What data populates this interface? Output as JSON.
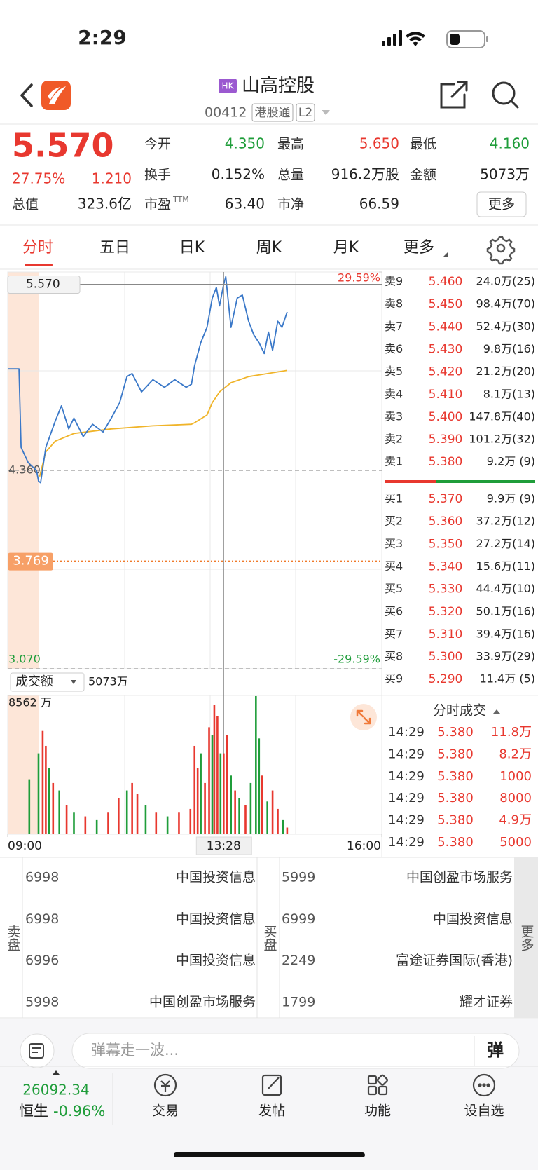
{
  "status_bar": {
    "time": "2:29"
  },
  "header": {
    "market_badge": "HK",
    "name": "山高控股",
    "code": "00412",
    "tags": [
      "港股通",
      "L2"
    ]
  },
  "quote": {
    "price": "5.570",
    "change_pct": "27.75%",
    "change": "1.210",
    "stats": [
      {
        "label": "今开",
        "value": "4.350"
      },
      {
        "label": "最高",
        "value": "5.650"
      },
      {
        "label": "最低",
        "value": "4.160"
      },
      {
        "label": "换手",
        "value": "0.152%"
      },
      {
        "label": "总量",
        "value": "916.2万股"
      },
      {
        "label": "金额",
        "value": "5073万"
      },
      {
        "label": "总值",
        "value": "323.6亿"
      },
      {
        "label": "市盈",
        "suffix": "TTM",
        "value": "63.40"
      },
      {
        "label": "市净",
        "value": "66.59"
      }
    ],
    "more_button": "更多"
  },
  "tabs": [
    "分时",
    "五日",
    "日K",
    "周K",
    "月K",
    "更多"
  ],
  "chart_data": [
    {
      "type": "line",
      "xlim": [
        "09:00",
        "16:00"
      ],
      "ylim": [
        3.07,
        5.65
      ],
      "yticks": [
        {
          "value": 4.36,
          "label": "4.360"
        },
        {
          "value": 3.07,
          "label": "3.070"
        }
      ],
      "y2lim": [
        -29.59,
        29.59
      ],
      "y2ticks": [
        {
          "value": 29.59,
          "label": "29.59%"
        },
        {
          "value": -29.59,
          "label": "-29.59%"
        }
      ],
      "crosshair": {
        "x": "13:28",
        "y": {
          "value": 5.57,
          "label": "5.570"
        }
      },
      "alert_line": {
        "value": 3.769,
        "label": "3.769"
      },
      "price": {
        "color": "#3a78c8",
        "x": [
          "09:00",
          "09:11",
          "09:13",
          "09:20",
          "09:28",
          "09:30",
          "09:32",
          "09:37",
          "09:46",
          "09:52",
          "09:59",
          "10:04",
          "10:13",
          "10:22",
          "10:32",
          "10:40",
          "10:48",
          "10:55",
          "11:00",
          "11:09",
          "11:20",
          "11:31",
          "11:41",
          "11:52",
          "11:57",
          "13:00",
          "13:06",
          "13:12",
          "13:17",
          "13:21",
          "13:24",
          "13:28",
          "13:30",
          "13:35",
          "13:41",
          "13:46",
          "13:52",
          "13:57",
          "14:02",
          "14:07",
          "14:11",
          "14:15",
          "14:20",
          "14:24",
          "14:29"
        ],
        "values": [
          5.02,
          5.02,
          4.51,
          4.41,
          4.36,
          4.29,
          4.28,
          4.51,
          4.68,
          4.78,
          4.63,
          4.7,
          4.58,
          4.66,
          4.61,
          4.7,
          4.8,
          4.97,
          4.99,
          4.87,
          4.95,
          4.9,
          4.95,
          4.9,
          4.92,
          5.04,
          5.19,
          5.29,
          5.48,
          5.55,
          5.43,
          5.57,
          5.62,
          5.29,
          5.48,
          5.5,
          5.33,
          5.24,
          5.19,
          5.12,
          5.26,
          5.14,
          5.33,
          5.29,
          5.39
        ]
      },
      "average": {
        "color": "#f0b429",
        "x": [
          "09:31",
          "09:37",
          "09:46",
          "10:04",
          "10:40",
          "11:20",
          "11:57",
          "13:00",
          "13:12",
          "13:17",
          "13:24",
          "13:35",
          "13:52",
          "14:29"
        ],
        "values": [
          4.32,
          4.48,
          4.55,
          4.6,
          4.63,
          4.65,
          4.66,
          4.67,
          4.72,
          4.8,
          4.87,
          4.93,
          4.97,
          5.01
        ]
      }
    },
    {
      "type": "bar",
      "selector": "成交额",
      "total": "5073万",
      "xlim": [
        "09:00",
        "16:00"
      ],
      "xticks": [
        "09:00",
        "16:00"
      ],
      "ylim": [
        0,
        8562
      ],
      "yticks": [
        {
          "value": 8562,
          "label": "8562 万"
        }
      ],
      "x": [
        "09:21",
        "09:30",
        "09:34",
        "09:37",
        "09:40",
        "09:44",
        "09:50",
        "09:57",
        "10:04",
        "10:15",
        "10:26",
        "10:37",
        "10:47",
        "10:55",
        "11:00",
        "11:05",
        "11:13",
        "11:23",
        "11:34",
        "11:45",
        "11:56",
        "13:00",
        "13:03",
        "13:06",
        "13:10",
        "13:14",
        "13:17",
        "13:19",
        "13:22",
        "13:25",
        "13:28",
        "13:31",
        "13:35",
        "13:39",
        "13:43",
        "13:49",
        "13:54",
        "13:59",
        "14:02",
        "14:05",
        "14:10",
        "14:15",
        "14:20",
        "14:25",
        "14:29"
      ],
      "values": [
        3390,
        4990,
        6370,
        5450,
        4080,
        3160,
        2700,
        1790,
        1330,
        1100,
        870,
        1330,
        2240,
        2700,
        3160,
        2470,
        1790,
        1330,
        1100,
        1330,
        1560,
        5450,
        4080,
        4990,
        3160,
        6600,
        6140,
        7970,
        7280,
        4990,
        4990,
        6140,
        3620,
        2700,
        2240,
        1790,
        3160,
        8520,
        5910,
        3620,
        2020,
        2700,
        1560,
        870,
        410
      ],
      "colors": [
        "#1f9d3a",
        "#1f9d3a",
        "#e8382f",
        "#e8382f",
        "#1f9d3a",
        "#e8382f",
        "#1f9d3a",
        "#e8382f",
        "#1f9d3a",
        "#e8382f",
        "#1f9d3a",
        "#e8382f",
        "#e8382f",
        "#1f9d3a",
        "#e8382f",
        "#e8382f",
        "#1f9d3a",
        "#e8382f",
        "#1f9d3a",
        "#e8382f",
        "#e8382f",
        "#e8382f",
        "#e8382f",
        "#1f9d3a",
        "#e8382f",
        "#e8382f",
        "#1f9d3a",
        "#e8382f",
        "#e8382f",
        "#1f9d3a",
        "#e8382f",
        "#e8382f",
        "#1f9d3a",
        "#e8382f",
        "#1f9d3a",
        "#e8382f",
        "#1f9d3a",
        "#1f9d3a",
        "#1f9d3a",
        "#e8382f",
        "#1f9d3a",
        "#e8382f",
        "#e8382f",
        "#1f9d3a",
        "#e8382f"
      ]
    }
  ],
  "order_book": {
    "asks": [
      {
        "label": "卖9",
        "price": "5.460",
        "volume": "24.0万(25)"
      },
      {
        "label": "卖8",
        "price": "5.450",
        "volume": "98.4万(70)"
      },
      {
        "label": "卖7",
        "price": "5.440",
        "volume": "52.4万(30)"
      },
      {
        "label": "卖6",
        "price": "5.430",
        "volume": "9.8万(16)"
      },
      {
        "label": "卖5",
        "price": "5.420",
        "volume": "21.2万(20)"
      },
      {
        "label": "卖4",
        "price": "5.410",
        "volume": "8.1万(13)"
      },
      {
        "label": "卖3",
        "price": "5.400",
        "volume": "147.8万(40)"
      },
      {
        "label": "卖2",
        "price": "5.390",
        "volume": "101.2万(32)"
      },
      {
        "label": "卖1",
        "price": "5.380",
        "volume": "9.2万 (9)"
      }
    ],
    "bids": [
      {
        "label": "买1",
        "price": "5.370",
        "volume": "9.9万 (9)"
      },
      {
        "label": "买2",
        "price": "5.360",
        "volume": "37.2万(12)"
      },
      {
        "label": "买3",
        "price": "5.350",
        "volume": "27.2万(14)"
      },
      {
        "label": "买4",
        "price": "5.340",
        "volume": "15.6万(11)"
      },
      {
        "label": "买5",
        "price": "5.330",
        "volume": "44.4万(10)"
      },
      {
        "label": "买6",
        "price": "5.320",
        "volume": "50.1万(16)"
      },
      {
        "label": "买7",
        "price": "5.310",
        "volume": "39.4万(16)"
      },
      {
        "label": "买8",
        "price": "5.300",
        "volume": "33.9万(29)"
      },
      {
        "label": "买9",
        "price": "5.290",
        "volume": "11.4万 (5)"
      }
    ]
  },
  "trades": {
    "title": "分时成交",
    "rows": [
      {
        "time": "14:29",
        "price": "5.380",
        "volume": "11.8万"
      },
      {
        "time": "14:29",
        "price": "5.380",
        "volume": "8.2万"
      },
      {
        "time": "14:29",
        "price": "5.380",
        "volume": "1000"
      },
      {
        "time": "14:29",
        "price": "5.380",
        "volume": "8000"
      },
      {
        "time": "14:29",
        "price": "5.380",
        "volume": "4.9万"
      },
      {
        "time": "14:29",
        "price": "5.380",
        "volume": "5000"
      }
    ]
  },
  "broker_queue": {
    "sell": {
      "label": "卖盘",
      "rows": [
        {
          "count": "6998",
          "broker": "中国投资信息"
        },
        {
          "count": "6998",
          "broker": "中国投资信息"
        },
        {
          "count": "6996",
          "broker": "中国投资信息"
        },
        {
          "count": "5998",
          "broker": "中国创盈市场服务"
        }
      ]
    },
    "buy": {
      "label": "买盘",
      "rows": [
        {
          "count": "5999",
          "broker": "中国创盈市场服务"
        },
        {
          "count": "6999",
          "broker": "中国投资信息"
        },
        {
          "count": "2249",
          "broker": "富途证券国际(香港)"
        },
        {
          "count": "1799",
          "broker": "耀才证券"
        }
      ]
    },
    "more": "更多"
  },
  "comment_bar": {
    "placeholder": "弹幕走一波...",
    "button": "弹"
  },
  "bottom_bar": {
    "index_value": "26092.34",
    "index_name": "恒生",
    "index_change": "-0.96%",
    "nav": [
      "交易",
      "发帖",
      "功能",
      "设自选"
    ]
  }
}
